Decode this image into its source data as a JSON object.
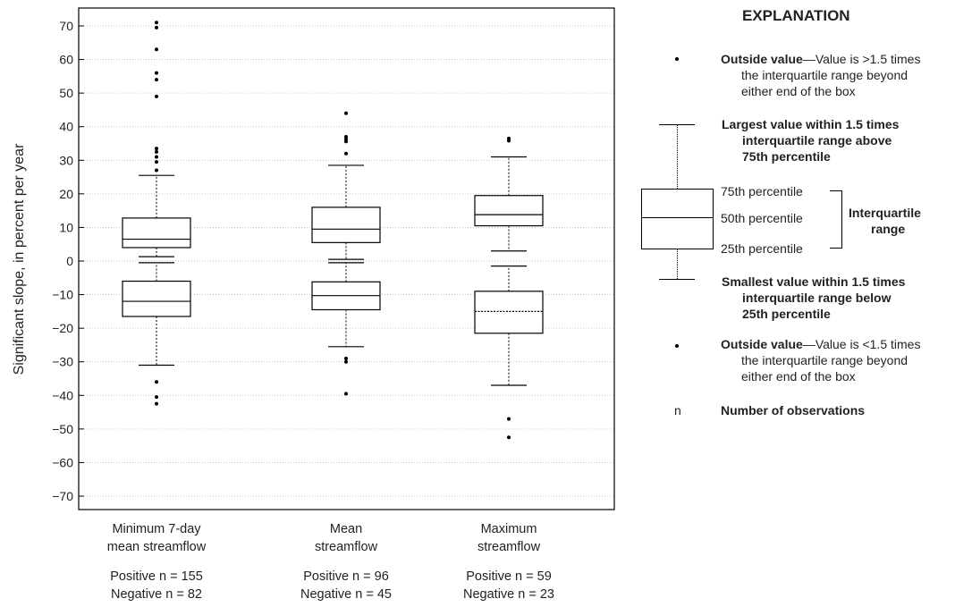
{
  "chart_data": {
    "type": "boxplot",
    "ylabel": "Significant slope, in percent per year",
    "ylim": [
      -75,
      75
    ],
    "yticks": [
      70,
      60,
      50,
      40,
      30,
      20,
      10,
      0,
      -10,
      -20,
      -30,
      -40,
      -50,
      -60,
      -70
    ],
    "ytick_labels": [
      "70",
      "60",
      "50",
      "40",
      "30",
      "20",
      "10",
      "0",
      "−10",
      "−20",
      "−30",
      "−40",
      "−50",
      "−60",
      "−70"
    ],
    "grid": "horizontal dotted",
    "categories": [
      {
        "label_lines": [
          "Minimum 7-day",
          "mean streamflow"
        ],
        "n_lines": [
          "Positive n = 155",
          "Negative n = 82"
        ],
        "positive": {
          "whisker_low": 1.3,
          "q1": 4.0,
          "median": 6.5,
          "q3": 12.8,
          "whisker_high": 25.5,
          "outliers": [
            71,
            69.5,
            63,
            56,
            54,
            49,
            33.5,
            32.5,
            31,
            29.5,
            27
          ]
        },
        "negative": {
          "whisker_low": -31,
          "q1": -16.5,
          "median": -12,
          "q3": -6,
          "whisker_high": -0.5,
          "outliers": [
            -36,
            -40.5,
            -42.5
          ]
        }
      },
      {
        "label_lines": [
          "Mean",
          "streamflow"
        ],
        "n_lines": [
          "Positive n = 96",
          "Negative n = 45"
        ],
        "positive": {
          "whisker_low": 0.5,
          "q1": 5.5,
          "median": 9.5,
          "q3": 16,
          "whisker_high": 28.5,
          "outliers": [
            44,
            37,
            36.3,
            35.6,
            32
          ]
        },
        "negative": {
          "whisker_low": -25.5,
          "q1": -14.5,
          "median": -10.3,
          "q3": -6.2,
          "whisker_high": -0.5,
          "outliers": [
            -29,
            -30,
            -39.5
          ]
        }
      },
      {
        "label_lines": [
          "Maximum",
          "streamflow"
        ],
        "n_lines": [
          "Positive n = 59",
          "Negative n = 23"
        ],
        "positive": {
          "whisker_low": 3,
          "q1": 10.5,
          "median": 13.8,
          "q3": 19.5,
          "whisker_high": 31,
          "outliers": [
            36.5,
            35.8
          ]
        },
        "negative": {
          "whisker_low": -37,
          "q1": -21.5,
          "median": -15,
          "q3": -9,
          "whisker_high": -1.5,
          "outliers": [
            -47,
            -52.5
          ]
        }
      }
    ]
  },
  "legend": {
    "title": "EXPLANATION",
    "outside_high_bold": "Outside value",
    "outside_high_rest": "—Value is >1.5 times",
    "outside_high_line2": "the interquartile range beyond",
    "outside_high_line3": "either end of the box",
    "largest_line1": "Largest value within 1.5 times",
    "largest_line2": "interquartile range above",
    "largest_line3": "75th percentile",
    "p75": "75th percentile",
    "p50": "50th percentile",
    "p25": "25th percentile",
    "iqr_line1": "Interquartile",
    "iqr_line2": "range",
    "smallest_line1": "Smallest value within 1.5 times",
    "smallest_line2": "interquartile range below",
    "smallest_line3": "25th percentile",
    "outside_low_bold": "Outside value",
    "outside_low_rest": "—Value is <1.5 times",
    "outside_low_line2": "the interquartile range beyond",
    "outside_low_line3": "either end of the box",
    "n_symbol": "n",
    "n_desc": "Number of observations"
  }
}
